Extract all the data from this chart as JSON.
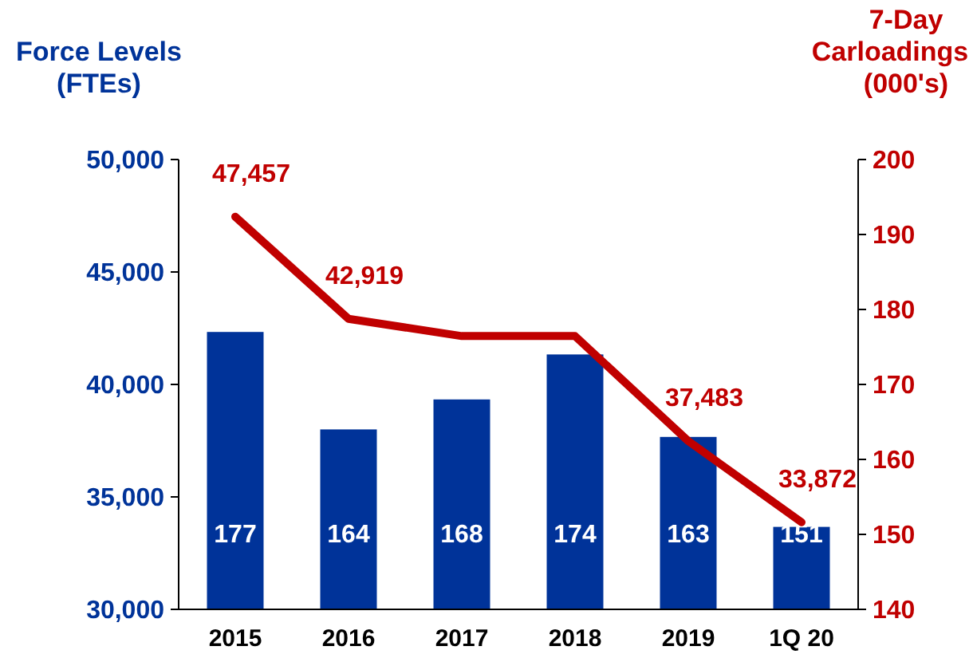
{
  "chart_data": {
    "type": "bar",
    "ylabel": "Force Levels\n(FTEs)",
    "y2label": "7-Day\nCarloadings\n(000's)",
    "categories": [
      "2015",
      "2016",
      "2017",
      "2018",
      "2019",
      "1Q 20"
    ],
    "series": [
      {
        "axis": "y2",
        "color": "#003399",
        "values": [
          177,
          164,
          168,
          174,
          163,
          151
        ],
        "value_labels": [
          "177",
          "164",
          "168",
          "174",
          "163",
          "151"
        ]
      },
      {
        "type": "line",
        "axis": "y",
        "color": "#c00000",
        "values": [
          47457,
          42919,
          42150,
          42150,
          37483,
          33872
        ],
        "value_labels": [
          "47,457",
          "42,919",
          null,
          null,
          "37,483",
          "33,872"
        ]
      }
    ],
    "ylim": [
      30000,
      50000
    ],
    "yticks": [
      {
        "value": 30000,
        "label": "30,000"
      },
      {
        "value": 35000,
        "label": "35,000"
      },
      {
        "value": 40000,
        "label": "40,000"
      },
      {
        "value": 45000,
        "label": "45,000"
      },
      {
        "value": 50000,
        "label": "50,000"
      }
    ],
    "y2lim": [
      140,
      200
    ],
    "y2ticks": [
      140,
      150,
      160,
      170,
      180,
      190,
      200
    ],
    "grid": false,
    "marker": "none",
    "line_style": "solid"
  }
}
